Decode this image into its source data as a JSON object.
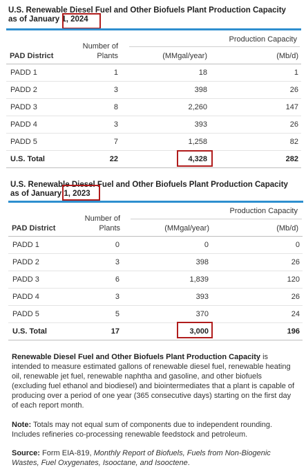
{
  "tables": [
    {
      "title_line1": "U.S. Renewable Diesel Fuel and Other Biofuels Plant Production Capacity",
      "title_line2": "as of January 1, 2024",
      "group_header": "Production Capacity",
      "col_district": "PAD District",
      "col_plants_line1": "Number of",
      "col_plants_line2": "Plants",
      "col_mmgal": "(MMgal/year)",
      "col_mbd": "(Mb/d)",
      "rows": [
        {
          "district": "PADD 1",
          "plants": "1",
          "mmgal": "18",
          "mbd": "1"
        },
        {
          "district": "PADD 2",
          "plants": "3",
          "mmgal": "398",
          "mbd": "26"
        },
        {
          "district": "PADD 3",
          "plants": "8",
          "mmgal": "2,260",
          "mbd": "147"
        },
        {
          "district": "PADD 4",
          "plants": "3",
          "mmgal": "393",
          "mbd": "26"
        },
        {
          "district": "PADD 5",
          "plants": "7",
          "mmgal": "1,258",
          "mbd": "82"
        }
      ],
      "total": {
        "district": "U.S. Total",
        "plants": "22",
        "mmgal": "4,328",
        "mbd": "282"
      }
    },
    {
      "title_line1": "U.S. Renewable Diesel Fuel and Other Biofuels Plant Production Capacity",
      "title_line2": "as of January 1, 2023",
      "group_header": "Production Capacity",
      "col_district": "PAD District",
      "col_plants_line1": "Number of",
      "col_plants_line2": "Plants",
      "col_mmgal": "(MMgal/year)",
      "col_mbd": "(Mb/d)",
      "rows": [
        {
          "district": "PADD 1",
          "plants": "0",
          "mmgal": "0",
          "mbd": "0"
        },
        {
          "district": "PADD 2",
          "plants": "3",
          "mmgal": "398",
          "mbd": "26"
        },
        {
          "district": "PADD 3",
          "plants": "6",
          "mmgal": "1,839",
          "mbd": "120"
        },
        {
          "district": "PADD 4",
          "plants": "3",
          "mmgal": "393",
          "mbd": "26"
        },
        {
          "district": "PADD 5",
          "plants": "5",
          "mmgal": "370",
          "mbd": "24"
        }
      ],
      "total": {
        "district": "U.S. Total",
        "plants": "17",
        "mmgal": "3,000",
        "mbd": "196"
      }
    }
  ],
  "notes": {
    "definition_bold": "Renewable Diesel Fuel and Other Biofuels Plant Production Capacity",
    "definition_text": " is intended to measure estimated gallons of renewable diesel fuel, renewable heating oil, renewable jet fuel, renewable naphtha and gasoline, and other biofuels (excluding fuel ethanol and biodiesel) and biointermediates that a plant is capable of producing over a period of one year (365 consecutive days) starting on the first day of each report month.",
    "note_label": "Note:",
    "note_text": " Totals may not equal sum of components due to independent rounding. Includes refineries co-processing renewable feedstock and petroleum.",
    "source_label": "Source:",
    "source_text": " Form EIA-819, ",
    "source_italic": "Monthly Report of Biofuels, Fuels from Non-Biogenic Wastes, Fuel Oxygenates, Isooctane, and Isooctene",
    "source_end": "."
  },
  "highlight_color": "#b01c1c",
  "accent_rule_color": "#2e8fcf"
}
